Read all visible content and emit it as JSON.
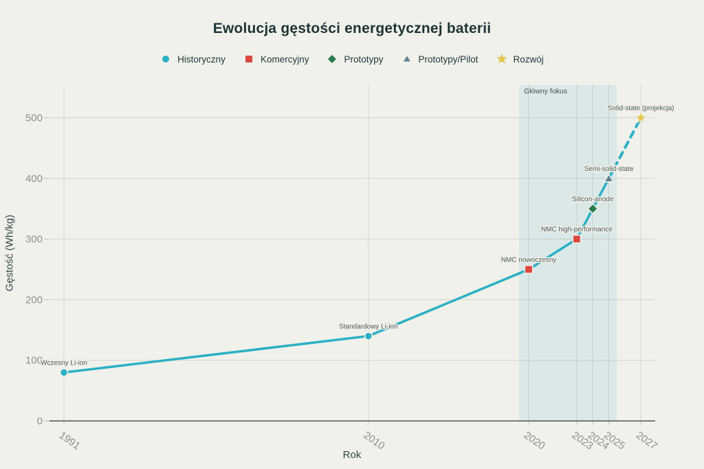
{
  "page": {
    "title": "Ewolucja gęstości energetycznej baterii"
  },
  "colors": {
    "background": "#f0f1ea",
    "title_text": "#1c3434",
    "grid": "#8c9182",
    "axis_line": "#50534f",
    "tick_text": "#8d9088",
    "point_label_text": "#4d5a57",
    "focus_region": "#d8e7e7",
    "historical": "#2ab0c5",
    "commercial": "#db4840",
    "prototype": "#2a7d4b",
    "pilot": "#5e8095",
    "development": "#e7c74f"
  },
  "legend": [
    {
      "label": "Historyczny",
      "marker": "circle",
      "color": "#2ab0c5"
    },
    {
      "label": "Komercyjny",
      "marker": "square",
      "color": "#db4840"
    },
    {
      "label": "Prototypy",
      "marker": "diamond",
      "color": "#2a7d4b"
    },
    {
      "label": "Prototypy/Pilot",
      "marker": "triangle",
      "color": "#5e8095"
    },
    {
      "label": "Rozwój",
      "marker": "star",
      "color": "#e7c74f"
    }
  ],
  "chart_data": {
    "type": "line",
    "title": "Ewolucja gęstości energetycznej baterii",
    "xlabel": "Rok",
    "ylabel": "Gęstość (Wh/kg)",
    "x_ticks": [
      1991,
      2010,
      2020,
      2023,
      2024,
      2025,
      2027
    ],
    "y_ticks": [
      0,
      100,
      200,
      300,
      400,
      500
    ],
    "xlim": [
      1990.1,
      2028
    ],
    "ylim": [
      0,
      554
    ],
    "grid": true,
    "line_color": "#2ab0c5",
    "points": [
      {
        "year": 1991,
        "density": 80,
        "label": "Wczesny Li-ion",
        "category": "Historyczny",
        "marker": "circle",
        "color": "#2ab0c5",
        "projected": false
      },
      {
        "year": 2010,
        "density": 140,
        "label": "Standardowy Li-ion",
        "category": "Historyczny",
        "marker": "circle",
        "color": "#2ab0c5",
        "projected": false
      },
      {
        "year": 2020,
        "density": 250,
        "label": "NMC nowoczesny",
        "category": "Komercyjny",
        "marker": "square",
        "color": "#db4840",
        "projected": false
      },
      {
        "year": 2023,
        "density": 300,
        "label": "NMC high-performance",
        "category": "Komercyjny",
        "marker": "square",
        "color": "#db4840",
        "projected": false
      },
      {
        "year": 2024,
        "density": 350,
        "label": "Silicon-anode",
        "category": "Prototypy",
        "marker": "diamond",
        "color": "#2a7d4b",
        "projected": false
      },
      {
        "year": 2025,
        "density": 400,
        "label": "Semi-solid-state",
        "category": "Prototypy/Pilot",
        "marker": "triangle",
        "color": "#5e8095",
        "projected": false
      },
      {
        "year": 2027,
        "density": 500,
        "label": "Solid-state (projekcja)",
        "category": "Rozwój",
        "marker": "star",
        "color": "#e7c74f",
        "projected": true
      }
    ],
    "focus_region": {
      "label": "Główny fokus",
      "x_start": 2019.4,
      "x_end": 2025.5
    }
  }
}
